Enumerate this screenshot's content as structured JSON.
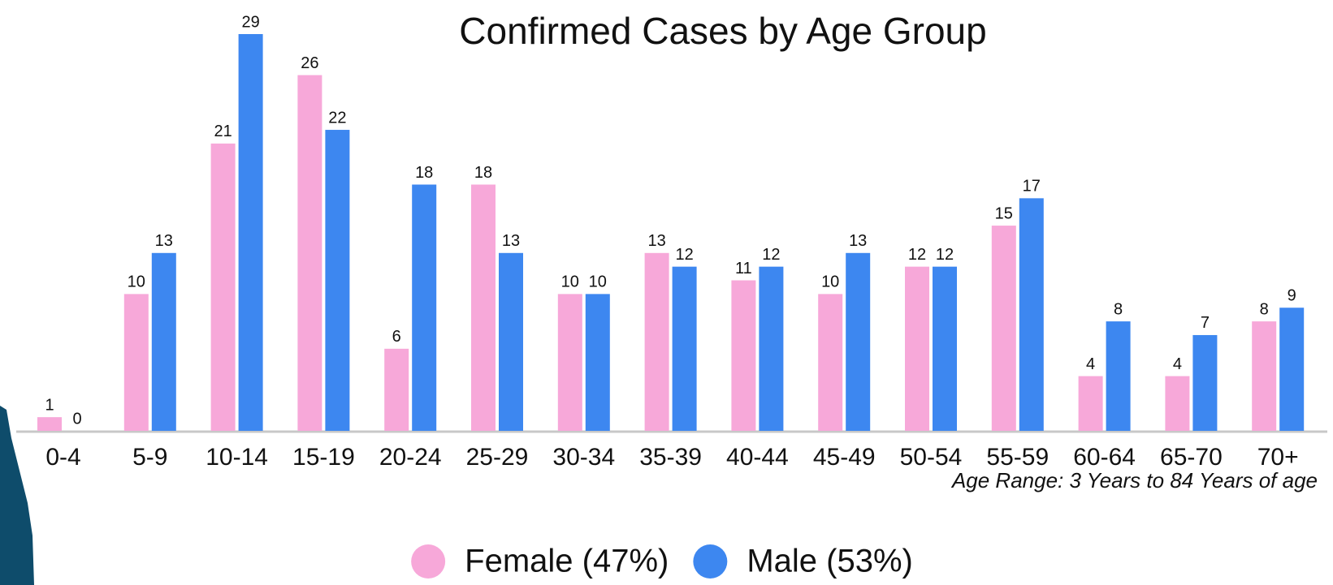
{
  "chart_data": {
    "type": "bar",
    "title": "Confirmed Cases by Age Group",
    "annotation": "Age Range: 3 Years to 84 Years of age",
    "categories": [
      "0-4",
      "5-9",
      "10-14",
      "15-19",
      "20-24",
      "25-29",
      "30-34",
      "35-39",
      "40-44",
      "45-49",
      "50-54",
      "55-59",
      "60-64",
      "65-70",
      "70+"
    ],
    "series": [
      {
        "name": "Female (47%)",
        "color": "#f7a8d9",
        "values": [
          1,
          10,
          21,
          26,
          6,
          18,
          10,
          13,
          11,
          10,
          12,
          15,
          4,
          4,
          8
        ]
      },
      {
        "name": "Male (53%)",
        "color": "#3d87f0",
        "values": [
          0,
          13,
          29,
          22,
          18,
          13,
          10,
          12,
          12,
          13,
          12,
          17,
          8,
          7,
          9
        ]
      }
    ],
    "legend": "bottom"
  }
}
